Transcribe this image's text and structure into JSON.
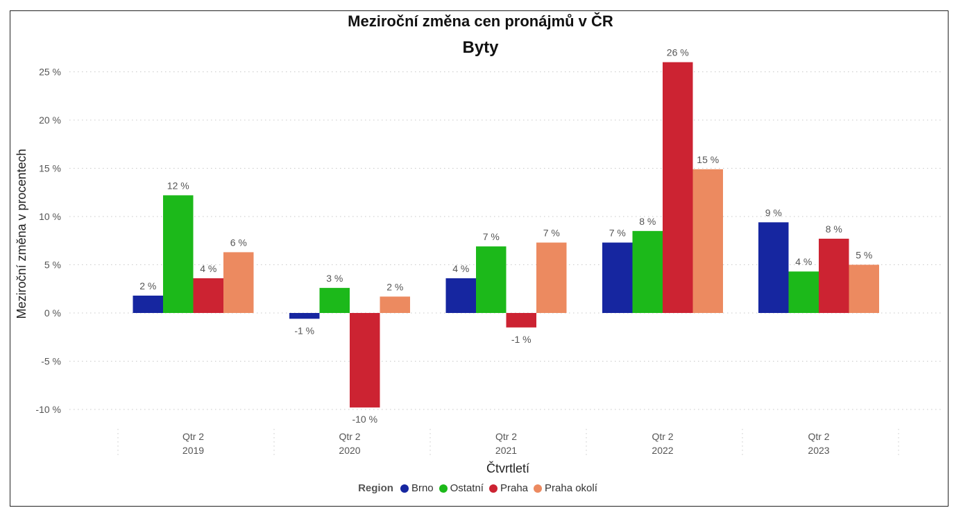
{
  "chart_data": {
    "type": "bar",
    "title": "Meziroční změna cen pronájmů v ČR",
    "subtitle": "Byty",
    "xlabel": "Čtvrtletí",
    "ylabel": "Meziroční změna v procentech",
    "categories": [
      {
        "quarter": "Qtr 2",
        "year": "2019"
      },
      {
        "quarter": "Qtr 2",
        "year": "2020"
      },
      {
        "quarter": "Qtr 2",
        "year": "2021"
      },
      {
        "quarter": "Qtr 2",
        "year": "2022"
      },
      {
        "quarter": "Qtr 2",
        "year": "2023"
      }
    ],
    "ylim": [
      -10,
      26
    ],
    "yticks": [
      -10,
      -5,
      0,
      5,
      10,
      15,
      20,
      25
    ],
    "ytick_labels": [
      "-10 %",
      "-5 %",
      "0 %",
      "5 %",
      "10 %",
      "15 %",
      "20 %",
      "25 %"
    ],
    "grid": true,
    "legend": {
      "title": "Region",
      "placement": "bottom"
    },
    "series": [
      {
        "name": "Brno",
        "color": "#1626a0",
        "values": [
          1.8,
          -0.6,
          3.6,
          7.3,
          9.4
        ],
        "labels": [
          "2 %",
          "-1 %",
          "4 %",
          "7 %",
          "9 %"
        ]
      },
      {
        "name": "Ostatní",
        "color": "#1cb91a",
        "values": [
          12.2,
          2.6,
          6.9,
          8.5,
          4.3
        ],
        "labels": [
          "12 %",
          "3 %",
          "7 %",
          "8 %",
          "4 %"
        ]
      },
      {
        "name": "Praha",
        "color": "#cc2332",
        "values": [
          3.6,
          -9.8,
          -1.5,
          26.0,
          7.7
        ],
        "labels": [
          "4 %",
          "-10 %",
          "-1 %",
          "26 %",
          "8 %"
        ]
      },
      {
        "name": "Praha okolí",
        "color": "#ec8a60",
        "values": [
          6.3,
          1.7,
          7.3,
          14.9,
          5.0
        ],
        "labels": [
          "6 %",
          "2 %",
          "7 %",
          "15 %",
          "5 %"
        ]
      }
    ]
  }
}
